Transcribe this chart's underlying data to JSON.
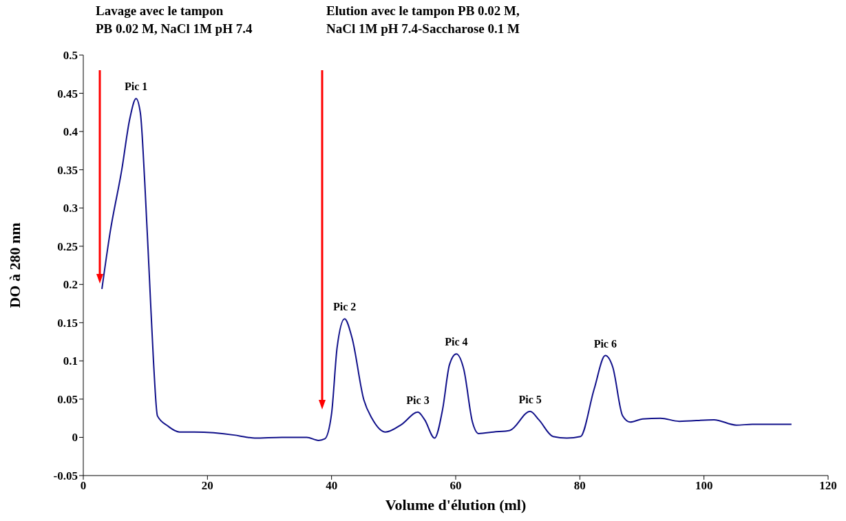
{
  "chart_data": {
    "type": "line",
    "xlabel": "Volume d'élution (ml)",
    "ylabel": "DO à 280 nm",
    "xlim": [
      0,
      120
    ],
    "xticks": [
      0,
      20,
      40,
      60,
      80,
      100,
      120
    ],
    "ylim": [
      -0.05,
      0.5
    ],
    "yticks": [
      -0.05,
      0,
      0.05,
      0.1,
      0.15,
      0.2,
      0.25,
      0.3,
      0.35,
      0.4,
      0.45,
      0.5
    ],
    "grid": false,
    "legend": false,
    "marker": "none",
    "line_style": "solid",
    "series": [
      {
        "color": "#10108a",
        "x": [
          3.0,
          4.3,
          6.2,
          7.5,
          8.5,
          9.2,
          9.9,
          10.7,
          11.3,
          11.95,
          13.6,
          15.5,
          17.9,
          24.3,
          26.5,
          27.6,
          32,
          36,
          37.9,
          38.9,
          40.0,
          40.9,
          42.1,
          43.3,
          45.2,
          46.5,
          48.7,
          51.3,
          53.9,
          55.0,
          56.6,
          57.9,
          59.0,
          60.1,
          61.3,
          62.7,
          63.7,
          66.1,
          68.7,
          72.0,
          73.4,
          75.7,
          77.9,
          80.1,
          82.3,
          84.1,
          85.3,
          86.9,
          88.1,
          90.1,
          93.0,
          96.0,
          101.6,
          105.2,
          107.8,
          114.1
        ],
        "values": [
          0.194,
          0.267,
          0.35,
          0.417,
          0.443,
          0.424,
          0.334,
          0.201,
          0.101,
          0.028,
          0.015,
          0.007,
          0.007,
          0.003,
          0,
          -0.001,
          0,
          0,
          -0.004,
          -0.002,
          0.031,
          0.118,
          0.155,
          0.13,
          0.049,
          0.025,
          0.007,
          0.017,
          0.033,
          0.023,
          -0.001,
          0.037,
          0.095,
          0.109,
          0.089,
          0.02,
          0.005,
          0.007,
          0.009,
          0.034,
          0.023,
          0.001,
          -0.001,
          0.001,
          0.063,
          0.107,
          0.092,
          0.028,
          0.02,
          0.024,
          0.025,
          0.021,
          0.023,
          0.016,
          0.017,
          0.017
        ]
      }
    ],
    "annotations": [
      "Lavage avec le tampon\nPB 0.02 M, NaCl 1M pH 7.4",
      "Elution avec le tampon PB 0.02 M,\nNaCl 1M pH 7.4-Saccharose 0.1 M",
      {
        "text": "Pic 1",
        "x": 8.5,
        "y": 0.443
      },
      {
        "text": "Pic 2",
        "x": 42.1,
        "y": 0.155
      },
      {
        "text": "Pic 3",
        "x": 53.9,
        "y": 0.033
      },
      {
        "text": "Pic 4",
        "x": 60.1,
        "y": 0.109
      },
      {
        "text": "Pic 5",
        "x": 72.0,
        "y": 0.034
      },
      {
        "text": "Pic 6",
        "x": 84.1,
        "y": 0.107
      }
    ]
  }
}
